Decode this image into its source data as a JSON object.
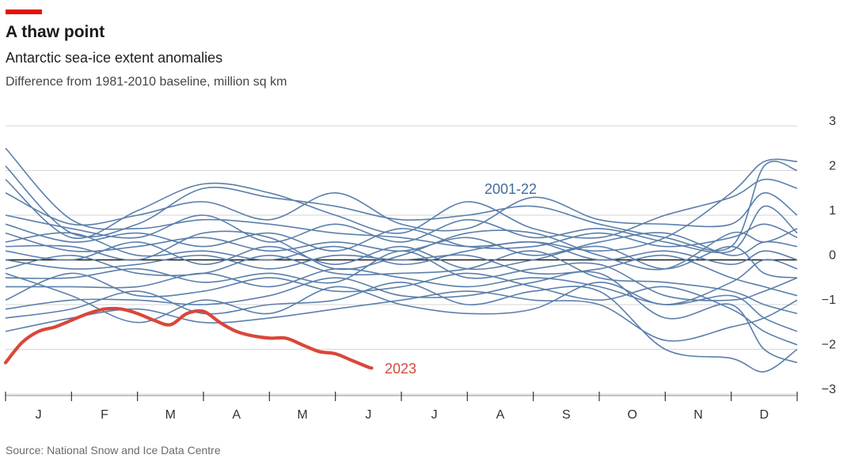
{
  "header": {
    "title": "A thaw point",
    "subtitle": "Antarctic sea-ice extent anomalies",
    "unit": "Difference from 1981-2010 baseline, million sq km"
  },
  "footer": {
    "source": "Source: National Snow and Ice Data Centre"
  },
  "colors": {
    "accent": "#e3120b",
    "history": "#5b7fab",
    "current": "#d9473b",
    "history_label": "#3f6c9e",
    "grid": "#d6d6d6",
    "zero": "#1a1a1a"
  },
  "chart_data": {
    "type": "line",
    "title": "A thaw point",
    "subtitle": "Antarctic sea-ice extent anomalies",
    "ylabel": "Difference from 1981-2010 baseline, million sq km",
    "xlabel": "",
    "x_unit": "month",
    "x_categories": [
      "J",
      "F",
      "M",
      "A",
      "M",
      "J",
      "J",
      "A",
      "S",
      "O",
      "N",
      "D"
    ],
    "xlim": [
      0,
      12
    ],
    "ylim": [
      -3,
      3
    ],
    "yticks": [
      3,
      2,
      1,
      0,
      -1,
      -2,
      -3
    ],
    "grid": true,
    "legend": "inline labels",
    "series_labels": {
      "history": "2001-22",
      "current": "2023"
    },
    "series": [
      {
        "name": "2023",
        "color": "#d9473b",
        "x": [
          0,
          0.25,
          0.5,
          0.75,
          1.0,
          1.25,
          1.5,
          1.75,
          2.0,
          2.25,
          2.5,
          2.75,
          3.0,
          3.25,
          3.5,
          3.75,
          4.0,
          4.25,
          4.5,
          4.75,
          5.0,
          5.25,
          5.5,
          5.55
        ],
        "y": [
          -2.3,
          -1.85,
          -1.6,
          -1.5,
          -1.35,
          -1.2,
          -1.1,
          -1.1,
          -1.2,
          -1.35,
          -1.45,
          -1.2,
          -1.15,
          -1.4,
          -1.6,
          -1.7,
          -1.75,
          -1.75,
          -1.9,
          -2.05,
          -2.1,
          -2.25,
          -2.4,
          -2.42
        ]
      },
      {
        "name": "",
        "x": [
          0,
          1,
          2,
          3,
          4,
          5,
          6,
          7,
          8,
          9,
          10,
          11,
          11.5,
          12
        ],
        "y": [
          2.5,
          0.9,
          0.7,
          0.9,
          0.8,
          0.6,
          0.5,
          0.3,
          0.4,
          0.2,
          0.5,
          1.5,
          2.2,
          2.2
        ]
      },
      {
        "name": "",
        "x": [
          0,
          1,
          2,
          3,
          4,
          5,
          6,
          7,
          8,
          9,
          10,
          11,
          11.5,
          12
        ],
        "y": [
          2.1,
          0.6,
          0.8,
          1.6,
          1.4,
          1.2,
          0.9,
          1.0,
          1.2,
          0.8,
          0.5,
          0.3,
          2.1,
          2.0
        ]
      },
      {
        "name": "",
        "x": [
          0,
          1,
          2,
          3,
          4,
          5,
          6,
          7,
          8,
          9,
          10,
          11,
          11.5,
          12
        ],
        "y": [
          1.8,
          0.5,
          1.1,
          1.7,
          1.5,
          1.0,
          0.6,
          1.3,
          0.7,
          0.5,
          1.0,
          1.4,
          1.8,
          1.6
        ]
      },
      {
        "name": "",
        "x": [
          0,
          1,
          2,
          3,
          4,
          5,
          6,
          7,
          8,
          9,
          10,
          11,
          11.5,
          12
        ],
        "y": [
          1.5,
          0.8,
          1.0,
          1.3,
          0.9,
          1.5,
          0.8,
          0.7,
          1.4,
          0.9,
          0.8,
          0.8,
          1.5,
          1.0
        ]
      },
      {
        "name": "",
        "x": [
          0,
          1,
          2,
          3,
          4,
          5,
          6,
          7,
          8,
          9,
          10,
          11,
          11.5,
          12
        ],
        "y": [
          1.0,
          0.7,
          0.5,
          1.0,
          0.4,
          0.8,
          0.4,
          0.9,
          0.5,
          0.7,
          0.4,
          0.2,
          1.2,
          0.6
        ]
      },
      {
        "name": "",
        "x": [
          0,
          1,
          2,
          3,
          4,
          5,
          6,
          7,
          8,
          9,
          10,
          11,
          11.5,
          12
        ],
        "y": [
          0.8,
          0.4,
          0.6,
          0.3,
          0.6,
          0.2,
          0.7,
          0.3,
          0.3,
          0.6,
          0.3,
          0.5,
          0.8,
          0.5
        ]
      },
      {
        "name": "",
        "x": [
          0,
          1,
          2,
          3,
          4,
          5,
          6,
          7,
          8,
          9,
          10,
          11,
          11.5,
          12
        ],
        "y": [
          0.6,
          0.2,
          0.3,
          0.5,
          0.2,
          0.4,
          0.2,
          0.5,
          0.1,
          0.4,
          0.6,
          0.1,
          0.4,
          0.3
        ]
      },
      {
        "name": "",
        "x": [
          0,
          1,
          2,
          3,
          4,
          5,
          6,
          7,
          8,
          9,
          10,
          11,
          11.5,
          12
        ],
        "y": [
          0.4,
          0.6,
          0.1,
          0.2,
          0.0,
          0.3,
          -0.1,
          0.2,
          0.4,
          0.0,
          0.2,
          -0.1,
          0.2,
          0.0
        ]
      },
      {
        "name": "",
        "x": [
          0,
          1,
          2,
          3,
          4,
          5,
          6,
          7,
          8,
          9,
          10,
          11,
          11.5,
          12
        ],
        "y": [
          0.2,
          0.0,
          0.4,
          -0.1,
          0.3,
          -0.1,
          0.3,
          -0.2,
          0.0,
          0.3,
          -0.2,
          0.3,
          -0.3,
          -0.4
        ]
      },
      {
        "name": "",
        "x": [
          0,
          1,
          2,
          3,
          4,
          5,
          6,
          7,
          8,
          9,
          10,
          11,
          11.5,
          12
        ],
        "y": [
          0.0,
          -0.2,
          -0.1,
          0.1,
          -0.2,
          0.1,
          0.0,
          0.1,
          -0.3,
          -0.2,
          0.1,
          -0.4,
          -0.6,
          -0.8
        ]
      },
      {
        "name": "",
        "x": [
          0,
          1,
          2,
          3,
          4,
          5,
          6,
          7,
          8,
          9,
          10,
          11,
          11.5,
          12
        ],
        "y": [
          -0.2,
          0.1,
          -0.3,
          -0.3,
          0.1,
          -0.3,
          -0.3,
          -0.2,
          0.2,
          -0.4,
          -0.5,
          -0.7,
          -1.0,
          -1.2
        ]
      },
      {
        "name": "",
        "x": [
          0,
          1,
          2,
          3,
          4,
          5,
          6,
          7,
          8,
          9,
          10,
          11,
          11.5,
          12
        ],
        "y": [
          -0.4,
          -0.4,
          -0.2,
          -0.5,
          -0.3,
          -0.5,
          0.2,
          -0.4,
          -0.2,
          -0.1,
          -0.8,
          -0.9,
          -0.7,
          -0.4
        ]
      },
      {
        "name": "",
        "x": [
          0,
          1,
          2,
          3,
          4,
          5,
          6,
          7,
          8,
          9,
          10,
          11,
          11.5,
          12
        ],
        "y": [
          -0.6,
          -0.6,
          -0.6,
          -0.3,
          -0.6,
          -0.2,
          -0.4,
          -0.6,
          -0.4,
          -0.6,
          -1.0,
          -0.8,
          -1.3,
          -1.6
        ]
      },
      {
        "name": "",
        "x": [
          0,
          1,
          2,
          3,
          4,
          5,
          6,
          7,
          8,
          9,
          10,
          11,
          11.5,
          12
        ],
        "y": [
          -0.9,
          -0.3,
          -0.8,
          -0.7,
          -0.4,
          -0.7,
          -0.6,
          -0.3,
          -0.6,
          -0.9,
          -0.6,
          -1.1,
          -1.6,
          -1.9
        ]
      },
      {
        "name": "",
        "x": [
          0,
          1,
          2,
          3,
          4,
          5,
          6,
          7,
          8,
          9,
          10,
          11,
          11.5,
          12
        ],
        "y": [
          -1.1,
          -0.9,
          -0.9,
          -1.0,
          -0.8,
          -0.4,
          -0.8,
          -0.8,
          -0.5,
          -0.3,
          -1.3,
          -1.0,
          -2.0,
          -2.3
        ]
      },
      {
        "name": "",
        "x": [
          0,
          1,
          2,
          3,
          4,
          5,
          6,
          7,
          8,
          9,
          10,
          11,
          11.5,
          12
        ],
        "y": [
          -1.3,
          -1.1,
          -0.7,
          -1.2,
          -1.0,
          -0.9,
          -0.5,
          -1.0,
          -0.7,
          -0.7,
          -2.0,
          -2.2,
          -2.5,
          -2.0
        ]
      },
      {
        "name": "",
        "x": [
          0,
          1,
          2,
          3,
          4,
          5,
          6,
          7,
          8,
          9,
          10,
          11,
          11.5,
          12
        ],
        "y": [
          -1.6,
          -1.3,
          -1.1,
          -1.4,
          -1.3,
          -1.1,
          -0.9,
          -0.7,
          -0.9,
          -1.0,
          -1.8,
          -1.5,
          -1.3,
          -0.9
        ]
      },
      {
        "name": "",
        "x": [
          0,
          1,
          2,
          3,
          4,
          5,
          6,
          7,
          8,
          9,
          10,
          11,
          11.5,
          12
        ],
        "y": [
          -0.3,
          -0.8,
          -1.4,
          -0.9,
          -1.2,
          -0.6,
          -1.0,
          -1.2,
          -1.1,
          -0.5,
          -1.0,
          -0.5,
          0.0,
          -0.2
        ]
      },
      {
        "name": "",
        "x": [
          0,
          1,
          2,
          3,
          4,
          5,
          6,
          7,
          8,
          9,
          10,
          11,
          11.5,
          12
        ],
        "y": [
          0.3,
          0.3,
          0.0,
          0.6,
          0.5,
          -0.2,
          0.1,
          0.6,
          0.6,
          0.1,
          -0.2,
          0.6,
          0.4,
          0.7
        ]
      }
    ]
  }
}
